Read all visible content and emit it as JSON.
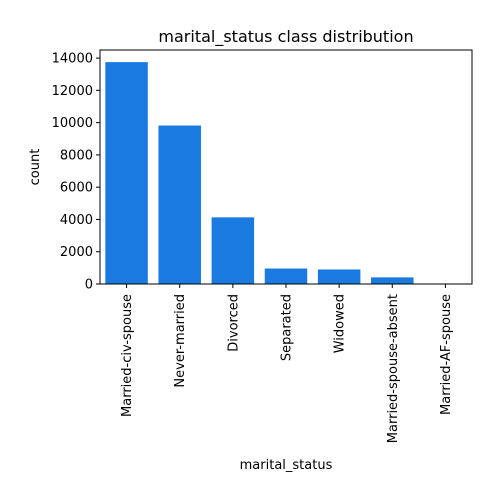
{
  "chart_data": {
    "type": "bar",
    "title": "marital_status class distribution",
    "xlabel": "marital_status",
    "ylabel": "count",
    "categories": [
      "Married-civ-spouse",
      "Never-married",
      "Divorced",
      "Separated",
      "Widowed",
      "Married-spouse-absent",
      "Married-AF-spouse"
    ],
    "values": [
      13750,
      9820,
      4130,
      960,
      900,
      410,
      20
    ],
    "ylim": [
      0,
      14500
    ],
    "yticks": [
      0,
      2000,
      4000,
      6000,
      8000,
      10000,
      12000,
      14000
    ],
    "ytick_labels": [
      "0",
      "2000",
      "4000",
      "6000",
      "8000",
      "10000",
      "12000",
      "14000"
    ],
    "grid": false,
    "bar_color": "#1a7ae0"
  }
}
